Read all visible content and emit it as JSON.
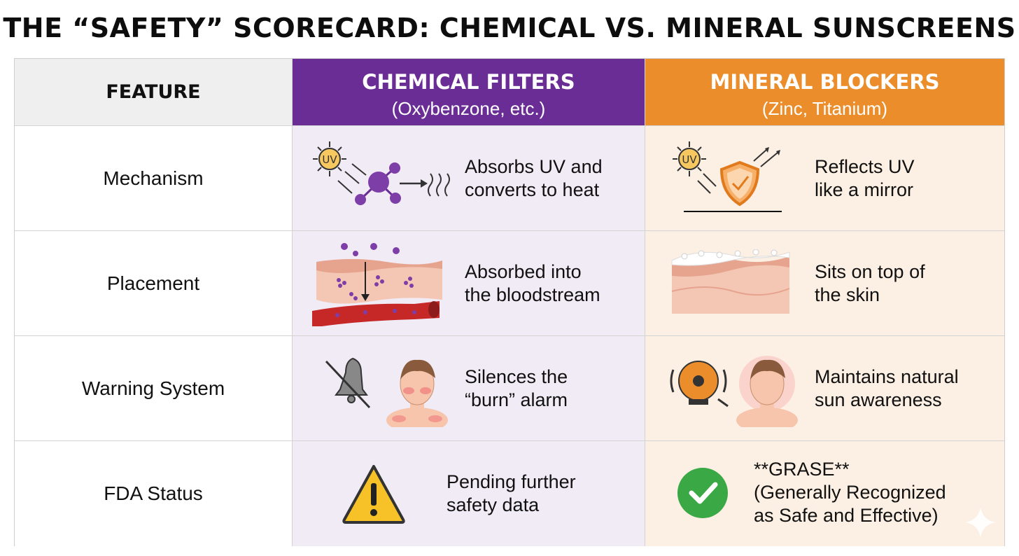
{
  "title": "THE “SAFETY” SCORECARD: CHEMICAL VS. MINERAL SUNSCREENS",
  "header": {
    "feature": "FEATURE",
    "chemical": {
      "title": "CHEMICAL FILTERS",
      "subtitle": "(Oxybenzone, etc.)"
    },
    "mineral": {
      "title": "MINERAL BLOCKERS",
      "subtitle": "(Zinc, Titanium)"
    }
  },
  "colors": {
    "chemical_header": "#6a2d96",
    "mineral_header": "#ec8d2c",
    "chemical_column": "#f1ebf6",
    "mineral_column": "#fcefe3",
    "feature_header": "#efefef"
  },
  "rows": [
    {
      "feature": "Mechanism",
      "chemical": {
        "line1": "Absorbs UV and",
        "line2": "converts to heat",
        "icon": "uv-absorbing-molecule-icon"
      },
      "mineral": {
        "line1": "Reflects UV",
        "line2": "like a mirror",
        "icon": "uv-reflecting-shield-icon"
      },
      "uv_label": "UV"
    },
    {
      "feature": "Placement",
      "chemical": {
        "line1": "Absorbed into",
        "line2": "the bloodstream",
        "icon": "skin-bloodstream-icon"
      },
      "mineral": {
        "line1": "Sits on top of",
        "line2": "the skin",
        "icon": "skin-surface-icon"
      }
    },
    {
      "feature": "Warning System",
      "chemical": {
        "line1": "Silences the",
        "line2": "“burn” alarm",
        "icon": "muted-bell-person-icon"
      },
      "mineral": {
        "line1": "Maintains natural",
        "line2": "sun awareness",
        "icon": "ringing-alarm-person-icon"
      }
    },
    {
      "feature": "FDA Status",
      "chemical": {
        "line1": "Pending further",
        "line2": "safety data",
        "icon": "warning-triangle-icon"
      },
      "mineral": {
        "line1": "**GRASE**",
        "line2": "(Generally Recognized",
        "line3": "as Safe and Effective)",
        "icon": "green-check-icon"
      }
    }
  ]
}
